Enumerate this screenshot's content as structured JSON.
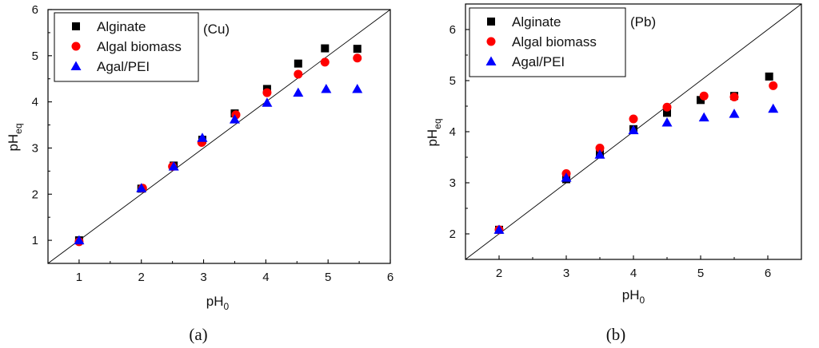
{
  "chart_data": [
    {
      "type": "scatter",
      "panel_label": "(a)",
      "annotation": "(Cu)",
      "xlabel": "pH",
      "xlabel_sub": "0",
      "ylabel": "pH",
      "ylabel_sub": "eq",
      "xlim": [
        0.5,
        6
      ],
      "ylim": [
        0.5,
        6
      ],
      "xticks": [
        1,
        2,
        3,
        4,
        5,
        6
      ],
      "yticks": [
        1,
        2,
        3,
        4,
        5,
        6
      ],
      "reference_line": "y = x",
      "legend_position": "top-left",
      "series": [
        {
          "name": "Alginate",
          "marker": "square",
          "color": "#000000",
          "points": [
            [
              1.0,
              1.0
            ],
            [
              2.0,
              2.12
            ],
            [
              2.52,
              2.62
            ],
            [
              2.98,
              3.18
            ],
            [
              3.5,
              3.75
            ],
            [
              4.02,
              4.28
            ],
            [
              4.52,
              4.83
            ],
            [
              4.95,
              5.16
            ],
            [
              5.47,
              5.15
            ]
          ]
        },
        {
          "name": "Algal biomass",
          "marker": "circle",
          "color": "#ff0000",
          "points": [
            [
              1.0,
              0.97
            ],
            [
              2.02,
              2.13
            ],
            [
              2.5,
              2.6
            ],
            [
              2.97,
              3.12
            ],
            [
              3.52,
              3.72
            ],
            [
              4.02,
              4.2
            ],
            [
              4.52,
              4.6
            ],
            [
              4.95,
              4.86
            ],
            [
              5.47,
              4.95
            ]
          ]
        },
        {
          "name": "Agal/PEI",
          "marker": "triangle",
          "color": "#0000ff",
          "points": [
            [
              1.0,
              1.0
            ],
            [
              2.0,
              2.13
            ],
            [
              2.52,
              2.6
            ],
            [
              2.98,
              3.22
            ],
            [
              3.5,
              3.62
            ],
            [
              4.02,
              3.98
            ],
            [
              4.52,
              4.2
            ],
            [
              4.97,
              4.28
            ],
            [
              5.47,
              4.28
            ]
          ]
        }
      ]
    },
    {
      "type": "scatter",
      "panel_label": "(b)",
      "annotation": "(Pb)",
      "xlabel": "pH",
      "xlabel_sub": "0",
      "ylabel": "pH",
      "ylabel_sub": "eq",
      "xlim": [
        1.5,
        6.5
      ],
      "ylim": [
        1.5,
        6.5
      ],
      "xticks": [
        2,
        3,
        4,
        5,
        6
      ],
      "yticks": [
        2,
        3,
        4,
        5,
        6
      ],
      "reference_line": "y = x",
      "legend_position": "top-left",
      "series": [
        {
          "name": "Alginate",
          "marker": "square",
          "color": "#000000",
          "points": [
            [
              2.0,
              2.08
            ],
            [
              3.0,
              3.07
            ],
            [
              3.5,
              3.57
            ],
            [
              4.0,
              4.05
            ],
            [
              4.5,
              4.37
            ],
            [
              5.0,
              4.62
            ],
            [
              5.5,
              4.7
            ],
            [
              6.02,
              5.08
            ]
          ]
        },
        {
          "name": "Algal biomass",
          "marker": "circle",
          "color": "#ff0000",
          "points": [
            [
              2.0,
              2.08
            ],
            [
              3.0,
              3.18
            ],
            [
              3.5,
              3.68
            ],
            [
              4.0,
              4.25
            ],
            [
              4.5,
              4.48
            ],
            [
              5.05,
              4.7
            ],
            [
              5.5,
              4.68
            ],
            [
              6.08,
              4.9
            ]
          ]
        },
        {
          "name": "Agal/PEI",
          "marker": "triangle",
          "color": "#0000ff",
          "points": [
            [
              2.0,
              2.08
            ],
            [
              3.0,
              3.1
            ],
            [
              3.5,
              3.55
            ],
            [
              4.0,
              4.03
            ],
            [
              4.5,
              4.18
            ],
            [
              5.05,
              4.28
            ],
            [
              5.5,
              4.35
            ],
            [
              6.08,
              4.45
            ]
          ]
        }
      ]
    }
  ]
}
